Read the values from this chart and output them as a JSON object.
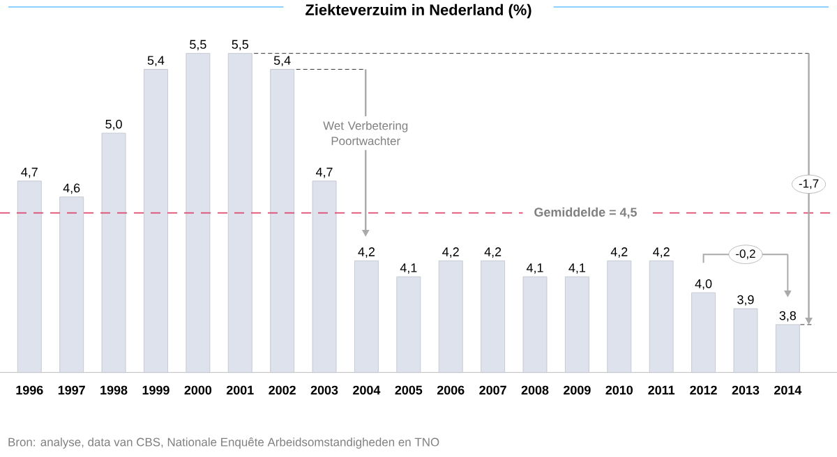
{
  "chart_data": {
    "type": "bar",
    "title": "Ziekteverzuim in Nederland  (%)",
    "categories": [
      "1996",
      "1997",
      "1998",
      "1999",
      "2000",
      "2001",
      "2002",
      "2003",
      "2004",
      "2005",
      "2006",
      "2007",
      "2008",
      "2009",
      "2010",
      "2011",
      "2012",
      "2013",
      "2014"
    ],
    "values": [
      4.7,
      4.6,
      5.0,
      5.4,
      5.5,
      5.5,
      5.4,
      4.7,
      4.2,
      4.1,
      4.2,
      4.2,
      4.1,
      4.1,
      4.2,
      4.2,
      4.0,
      3.9,
      3.8
    ],
    "value_labels": [
      "4,7",
      "4,6",
      "5,0",
      "5,4",
      "5,5",
      "5,5",
      "5,4",
      "4,7",
      "4,2",
      "4,1",
      "4,2",
      "4,2",
      "4,1",
      "4,1",
      "4,2",
      "4,2",
      "4,0",
      "3,9",
      "3,8"
    ],
    "color": "#dde2ec",
    "ylim": [
      3.5,
      5.5
    ],
    "tick_labels": "x",
    "grid": false,
    "ref_lines": [
      {
        "axis": "y",
        "value": 4.5,
        "label": "Gemiddelde = 4,5",
        "color": "#e0466e",
        "line_style": "dashed"
      }
    ],
    "annotations": [
      "Wet Verbetering Poortwachter",
      "-0,2",
      "-1,7",
      "Bron: analyse, data van CBS, Nationale Enquête Arbeidsomstandigheden en TNO"
    ]
  }
}
